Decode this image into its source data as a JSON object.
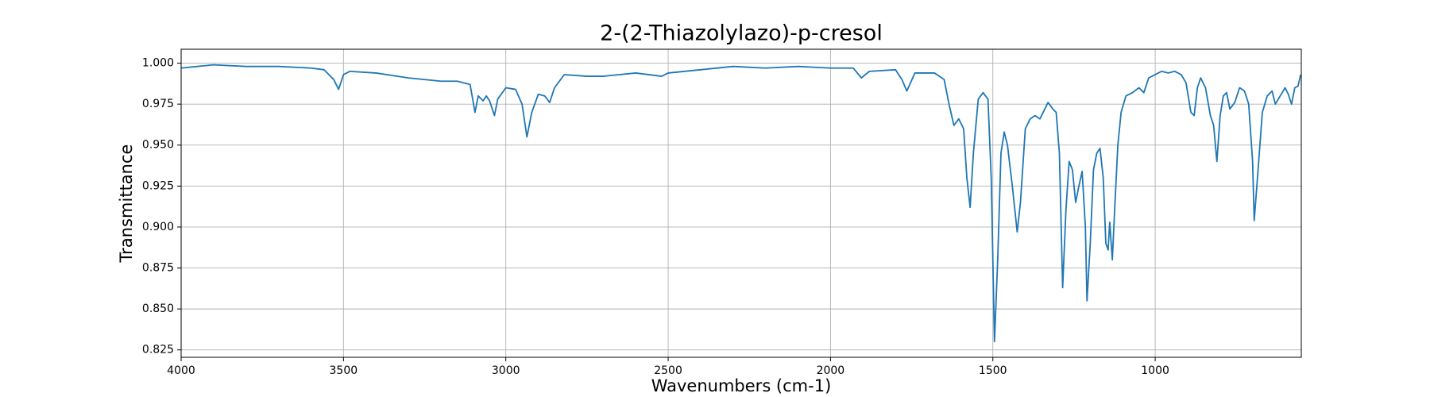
{
  "chart_data": {
    "type": "line",
    "title": "2-(2-Thiazolylazo)-p-cresol",
    "xlabel": "Wavenumbers (cm-1)",
    "ylabel": "Transmittance",
    "color": "#1f77b4",
    "grid": true,
    "xlim": [
      4000,
      550
    ],
    "ylim": [
      0.8205,
      1.0085
    ],
    "xticks": [
      4000,
      3500,
      3000,
      2500,
      2000,
      1500,
      1000
    ],
    "yticks": [
      {
        "value": 0.825,
        "label": "0.825"
      },
      {
        "value": 0.85,
        "label": "0.850"
      },
      {
        "value": 0.875,
        "label": "0.875"
      },
      {
        "value": 0.9,
        "label": "0.900"
      },
      {
        "value": 0.925,
        "label": "0.925"
      },
      {
        "value": 0.95,
        "label": "0.950"
      },
      {
        "value": 0.975,
        "label": "0.975"
      },
      {
        "value": 1.0,
        "label": "1.000"
      }
    ],
    "x": [
      4000,
      3950,
      3900,
      3800,
      3700,
      3600,
      3560,
      3530,
      3515,
      3500,
      3480,
      3400,
      3300,
      3200,
      3150,
      3110,
      3095,
      3085,
      3070,
      3060,
      3050,
      3035,
      3025,
      3000,
      2970,
      2950,
      2935,
      2920,
      2900,
      2880,
      2865,
      2850,
      2820,
      2750,
      2700,
      2600,
      2520,
      2500,
      2400,
      2300,
      2200,
      2100,
      2000,
      1930,
      1905,
      1880,
      1800,
      1780,
      1765,
      1740,
      1680,
      1650,
      1635,
      1620,
      1605,
      1590,
      1580,
      1570,
      1560,
      1545,
      1530,
      1515,
      1505,
      1495,
      1485,
      1475,
      1465,
      1455,
      1440,
      1425,
      1415,
      1400,
      1385,
      1370,
      1355,
      1345,
      1330,
      1315,
      1305,
      1295,
      1285,
      1275,
      1265,
      1255,
      1245,
      1235,
      1225,
      1215,
      1210,
      1200,
      1190,
      1180,
      1170,
      1160,
      1152,
      1145,
      1140,
      1132,
      1125,
      1115,
      1105,
      1090,
      1070,
      1050,
      1035,
      1020,
      1000,
      980,
      960,
      940,
      920,
      905,
      890,
      880,
      870,
      860,
      845,
      830,
      820,
      810,
      800,
      790,
      780,
      770,
      755,
      740,
      725,
      712,
      700,
      695,
      685,
      670,
      655,
      640,
      630,
      615,
      600,
      590,
      580,
      570,
      560,
      552
    ],
    "values": [
      0.997,
      0.998,
      0.999,
      0.998,
      0.998,
      0.997,
      0.996,
      0.99,
      0.984,
      0.993,
      0.995,
      0.994,
      0.991,
      0.989,
      0.989,
      0.987,
      0.97,
      0.98,
      0.977,
      0.98,
      0.977,
      0.968,
      0.978,
      0.985,
      0.984,
      0.975,
      0.955,
      0.97,
      0.981,
      0.98,
      0.976,
      0.985,
      0.993,
      0.992,
      0.992,
      0.994,
      0.992,
      0.994,
      0.996,
      0.998,
      0.997,
      0.998,
      0.997,
      0.997,
      0.991,
      0.995,
      0.996,
      0.99,
      0.983,
      0.994,
      0.994,
      0.99,
      0.975,
      0.962,
      0.966,
      0.96,
      0.93,
      0.912,
      0.945,
      0.978,
      0.982,
      0.978,
      0.93,
      0.83,
      0.88,
      0.945,
      0.958,
      0.95,
      0.925,
      0.897,
      0.915,
      0.96,
      0.966,
      0.968,
      0.966,
      0.97,
      0.976,
      0.972,
      0.97,
      0.945,
      0.863,
      0.91,
      0.94,
      0.935,
      0.915,
      0.925,
      0.934,
      0.9,
      0.855,
      0.89,
      0.935,
      0.945,
      0.948,
      0.93,
      0.89,
      0.886,
      0.903,
      0.88,
      0.91,
      0.95,
      0.97,
      0.98,
      0.982,
      0.985,
      0.982,
      0.991,
      0.993,
      0.995,
      0.994,
      0.995,
      0.993,
      0.988,
      0.97,
      0.968,
      0.985,
      0.991,
      0.985,
      0.968,
      0.962,
      0.94,
      0.968,
      0.98,
      0.982,
      0.972,
      0.976,
      0.985,
      0.983,
      0.975,
      0.94,
      0.904,
      0.93,
      0.97,
      0.98,
      0.983,
      0.975,
      0.98,
      0.985,
      0.981,
      0.975,
      0.985,
      0.986,
      0.993
    ]
  }
}
